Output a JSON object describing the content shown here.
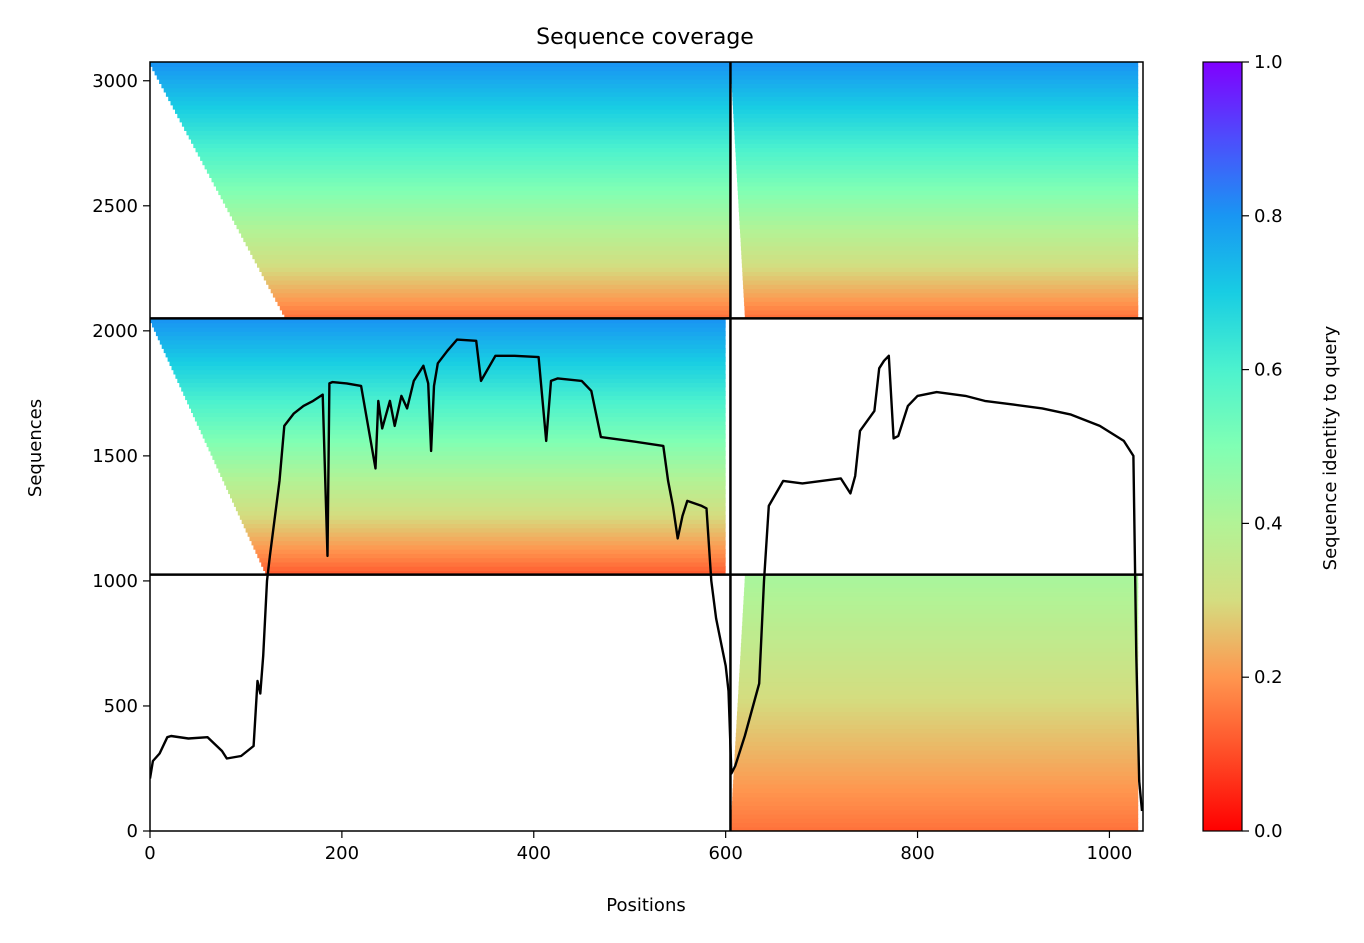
{
  "chart_data": {
    "type": "heatmap",
    "title": "Sequence coverage",
    "xlabel": "Positions",
    "ylabel": "Sequences",
    "colorbar_label": "Sequence identity to query",
    "colormap": "rainbow_r",
    "xlim": [
      0,
      1035
    ],
    "ylim": [
      0,
      3075
    ],
    "x_ticks": [
      0,
      200,
      400,
      600,
      800,
      1000
    ],
    "y_ticks": [
      0,
      500,
      1000,
      1500,
      2000,
      2500,
      3000
    ],
    "colorbar_ticks": [
      "0.0",
      "0.2",
      "0.4",
      "0.6",
      "0.8",
      "1.0"
    ],
    "colorbar_range": [
      0,
      1
    ],
    "chain_boundary_x": 605,
    "row_boundaries_y": [
      1025,
      2050
    ],
    "blocks": [
      {
        "name": "chain1-paired",
        "x": [
          0,
          605
        ],
        "y": [
          2050,
          3075
        ],
        "identity_top": 0.8,
        "identity_bottom": 0.15,
        "coverage_start_top": 0,
        "coverage_start_bottom": 140,
        "coverage_end": 605
      },
      {
        "name": "chain2-paired",
        "x": [
          605,
          1035
        ],
        "y": [
          2050,
          3075
        ],
        "identity_top": 0.8,
        "identity_bottom": 0.15,
        "coverage_start_top": 605,
        "coverage_start_bottom": 620,
        "coverage_end": 1030
      },
      {
        "name": "chain1-unpaired",
        "x": [
          0,
          605
        ],
        "y": [
          1025,
          2050
        ],
        "identity_top": 0.8,
        "identity_bottom": 0.12,
        "coverage_start_top": 0,
        "coverage_start_bottom": 120,
        "coverage_end": 600
      },
      {
        "name": "chain2-unpaired",
        "x": [
          605,
          1035
        ],
        "y": [
          0,
          1025
        ],
        "identity_top": 0.42,
        "identity_bottom": 0.15,
        "coverage_start_top": 620,
        "coverage_start_bottom": 605,
        "coverage_end": 1030
      }
    ],
    "coverage_line": {
      "x": [
        0,
        3,
        10,
        18,
        22,
        40,
        60,
        75,
        80,
        95,
        108,
        112,
        115,
        118,
        122,
        125,
        130,
        135,
        140,
        150,
        160,
        170,
        180,
        185,
        187,
        190,
        205,
        220,
        235,
        238,
        242,
        250,
        255,
        262,
        268,
        275,
        285,
        290,
        293,
        296,
        300,
        310,
        320,
        340,
        345,
        360,
        380,
        405,
        413,
        418,
        425,
        450,
        460,
        470,
        500,
        535,
        540,
        545,
        550,
        555,
        560,
        575,
        580,
        585,
        590,
        600,
        603,
        606,
        610,
        620,
        635,
        640,
        645,
        660,
        680,
        700,
        720,
        730,
        735,
        740,
        755,
        760,
        765,
        770,
        775,
        780,
        790,
        800,
        820,
        850,
        870,
        900,
        930,
        960,
        990,
        1015,
        1025,
        1028,
        1031,
        1034
      ],
      "y": [
        210,
        280,
        310,
        375,
        380,
        370,
        375,
        320,
        290,
        300,
        340,
        600,
        550,
        700,
        1000,
        1100,
        1250,
        1400,
        1620,
        1670,
        1700,
        1720,
        1745,
        1100,
        1790,
        1795,
        1790,
        1780,
        1450,
        1720,
        1610,
        1720,
        1620,
        1740,
        1690,
        1800,
        1860,
        1790,
        1520,
        1780,
        1870,
        1920,
        1965,
        1960,
        1800,
        1900,
        1900,
        1895,
        1560,
        1800,
        1810,
        1800,
        1760,
        1575,
        1560,
        1540,
        1400,
        1300,
        1170,
        1260,
        1320,
        1300,
        1290,
        1000,
        850,
        660,
        560,
        230,
        260,
        380,
        590,
        1000,
        1300,
        1400,
        1390,
        1400,
        1410,
        1350,
        1420,
        1600,
        1680,
        1850,
        1880,
        1900,
        1570,
        1580,
        1700,
        1740,
        1755,
        1740,
        1720,
        1705,
        1690,
        1665,
        1620,
        1560,
        1500,
        700,
        200,
        80
      ]
    }
  }
}
